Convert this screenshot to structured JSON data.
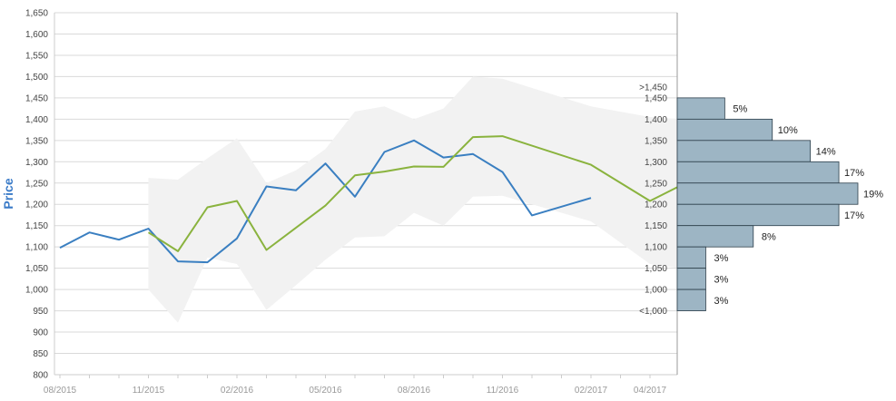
{
  "chart_data": {
    "type": "line",
    "ylabel": "Price",
    "ylim": [
      800,
      1650
    ],
    "y_ticks": [
      800,
      850,
      900,
      950,
      1000,
      1050,
      1100,
      1150,
      1200,
      1250,
      1300,
      1350,
      1400,
      1450,
      1500,
      1550,
      1600,
      1650
    ],
    "y_tick_labels": [
      "800",
      "850",
      "900",
      "950",
      "1,000",
      "1,050",
      "1,100",
      "1,150",
      "1,200",
      "1,250",
      "1,300",
      "1,350",
      "1,400",
      "1,450",
      "1,500",
      "1,550",
      "1,600",
      "1,650"
    ],
    "x_tick_labels": [
      "08/2015",
      "11/2015",
      "02/2016",
      "05/2016",
      "08/2016",
      "11/2016",
      "02/2017",
      "04/2017"
    ],
    "x_tick_dates": [
      "2015-08",
      "2015-11",
      "2016-02",
      "2016-05",
      "2016-08",
      "2016-11",
      "2017-02",
      "2017-04"
    ],
    "grid": true,
    "series": [
      {
        "color": "#3a7fc1",
        "points": [
          [
            "2015-08",
            1098
          ],
          [
            "2015-09",
            1134
          ],
          [
            "2015-10",
            1117
          ],
          [
            "2015-11",
            1143
          ],
          [
            "2015-12",
            1066
          ],
          [
            "2016-01",
            1064
          ],
          [
            "2016-02",
            1120
          ],
          [
            "2016-03",
            1242
          ],
          [
            "2016-04",
            1233
          ],
          [
            "2016-05",
            1296
          ],
          [
            "2016-06",
            1218
          ],
          [
            "2016-07",
            1323
          ],
          [
            "2016-08",
            1350
          ],
          [
            "2016-09",
            1310
          ],
          [
            "2016-10",
            1318
          ],
          [
            "2016-11",
            1276
          ],
          [
            "2016-12",
            1174
          ],
          [
            "2017-02",
            1215
          ]
        ]
      },
      {
        "color": "#8ab33e",
        "points": [
          [
            "2015-11",
            1134
          ],
          [
            "2015-12",
            1090
          ],
          [
            "2016-01",
            1193
          ],
          [
            "2016-02",
            1208
          ],
          [
            "2016-03",
            1093
          ],
          [
            "2016-05",
            1197
          ],
          [
            "2016-06",
            1268
          ],
          [
            "2016-07",
            1277
          ],
          [
            "2016-08",
            1289
          ],
          [
            "2016-09",
            1288
          ],
          [
            "2016-10",
            1358
          ],
          [
            "2016-11",
            1360
          ],
          [
            "2017-02",
            1293
          ],
          [
            "2017-04",
            1208
          ],
          [
            "2017-05",
            1243
          ]
        ]
      }
    ],
    "range_band": {
      "color": "#f2f2f2",
      "upper": [
        [
          "2015-11",
          1262
        ],
        [
          "2015-12",
          1258
        ],
        [
          "2016-01",
          1308
        ],
        [
          "2016-02",
          1355
        ],
        [
          "2016-03",
          1250
        ],
        [
          "2016-04",
          1280
        ],
        [
          "2016-05",
          1330
        ],
        [
          "2016-06",
          1418
        ],
        [
          "2016-07",
          1430
        ],
        [
          "2016-08",
          1400
        ],
        [
          "2016-09",
          1425
        ],
        [
          "2016-10",
          1500
        ],
        [
          "2016-11",
          1495
        ],
        [
          "2017-02",
          1430
        ],
        [
          "2017-04",
          1405
        ],
        [
          "2017-05",
          1400
        ]
      ],
      "lower": [
        [
          "2017-05",
          1050
        ],
        [
          "2017-04",
          1060
        ],
        [
          "2017-02",
          1160
        ],
        [
          "2016-11",
          1220
        ],
        [
          "2016-10",
          1218
        ],
        [
          "2016-09",
          1150
        ],
        [
          "2016-08",
          1180
        ],
        [
          "2016-07",
          1125
        ],
        [
          "2016-06",
          1122
        ],
        [
          "2016-05",
          1070
        ],
        [
          "2016-04",
          1010
        ],
        [
          "2016-03",
          952
        ],
        [
          "2016-02",
          1060
        ],
        [
          "2016-01",
          1075
        ],
        [
          "2015-12",
          922
        ],
        [
          "2015-11",
          1000
        ]
      ]
    },
    "histogram": {
      "type": "bar",
      "orientation": "horizontal",
      "color": "#9db5c4",
      "bin_labels": [
        ">1,450",
        "1,450",
        "1,400",
        "1,350",
        "1,300",
        "1,250",
        "1,200",
        "1,150",
        "1,100",
        "1,050",
        "1,000",
        "<1,000"
      ],
      "bars": [
        {
          "from": 1400,
          "to": 1450,
          "value": 5,
          "label": "5%"
        },
        {
          "from": 1350,
          "to": 1400,
          "value": 10,
          "label": "10%"
        },
        {
          "from": 1300,
          "to": 1350,
          "value": 14,
          "label": "14%"
        },
        {
          "from": 1250,
          "to": 1300,
          "value": 17,
          "label": "17%"
        },
        {
          "from": 1200,
          "to": 1250,
          "value": 19,
          "label": "19%"
        },
        {
          "from": 1150,
          "to": 1200,
          "value": 17,
          "label": "17%"
        },
        {
          "from": 1100,
          "to": 1150,
          "value": 8,
          "label": "8%"
        },
        {
          "from": 1050,
          "to": 1100,
          "value": 3,
          "label": "3%"
        },
        {
          "from": 1000,
          "to": 1050,
          "value": 3,
          "label": "3%"
        },
        {
          "from": 950,
          "to": 1000,
          "value": 3,
          "label": "3%"
        }
      ]
    }
  }
}
